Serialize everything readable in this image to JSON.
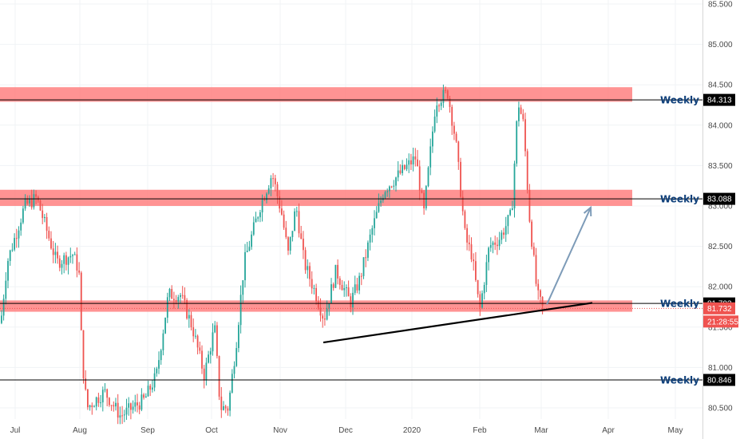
{
  "chart_data": {
    "type": "candlestick",
    "y_axis": {
      "ticks": [
        "85.500",
        "85.000",
        "84.500",
        "84.000",
        "83.500",
        "83.000",
        "82.500",
        "82.000",
        "81.500",
        "81.000",
        "80.500"
      ],
      "range": [
        80.4,
        85.55
      ],
      "position": "right"
    },
    "x_axis": {
      "ticks": [
        "Jul",
        "Aug",
        "Sep",
        "Oct",
        "Nov",
        "Dec",
        "2020",
        "Feb",
        "Mar",
        "Apr",
        "May"
      ]
    },
    "levels": [
      {
        "label": "Weekly",
        "value": 84.313,
        "price_tag": "84.313",
        "zone": [
          84.29,
          84.47
        ],
        "zone_until": "Apr"
      },
      {
        "label": "Weekly",
        "value": 83.088,
        "price_tag": "83.088",
        "zone": [
          83.0,
          83.2
        ],
        "zone_until": "Apr"
      },
      {
        "label": "Weekly",
        "value": 81.793,
        "price_tag": "81.793",
        "zone": [
          81.69,
          81.83
        ],
        "zone_until": "Apr"
      },
      {
        "label": "Weekly",
        "value": 80.846,
        "price_tag": "80.846",
        "zone": null
      }
    ],
    "last_price": {
      "value": 81.732,
      "label": "81.732",
      "countdown": "21:28:55"
    },
    "trendline": {
      "from": {
        "date": "Nov",
        "price": 81.31
      },
      "to": {
        "date": "Mar",
        "price": 81.8
      }
    },
    "projection_arrow": {
      "from": {
        "date": "Mar",
        "price": 81.78
      },
      "to": {
        "date": "Mar",
        "price": 82.98
      }
    },
    "colors": {
      "up": "#26a69a",
      "down": "#ef5350",
      "zone": "#ff8080",
      "level_line": "#000000",
      "tag_bg": "#000000",
      "last_price_bg": "#ef5350",
      "arrow": "#7d9bb8",
      "weekly_text": "#0e3f7a"
    }
  }
}
